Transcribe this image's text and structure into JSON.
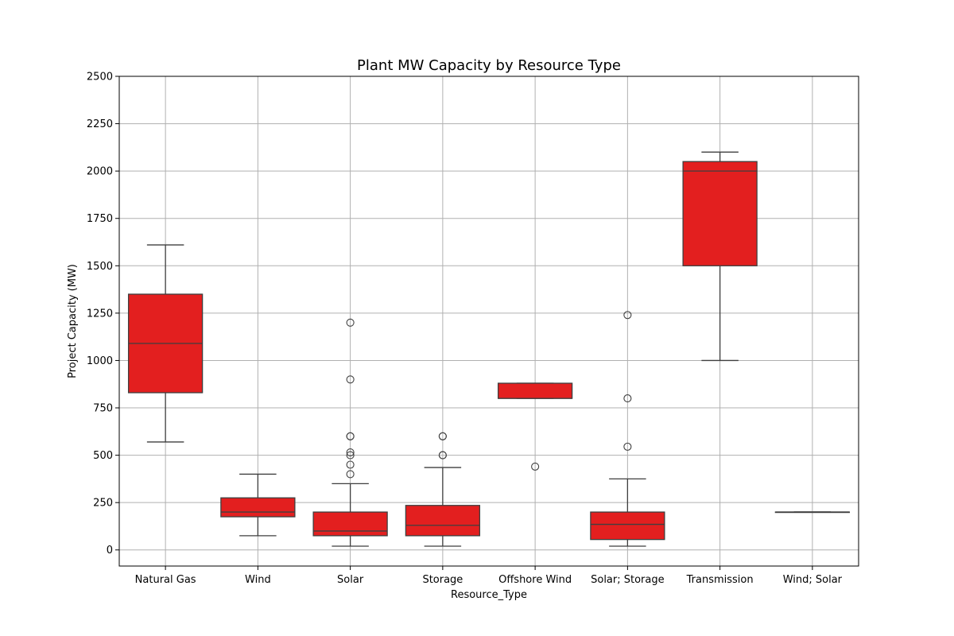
{
  "chart_data": {
    "type": "box",
    "title": "Plant MW Capacity by Resource Type",
    "xlabel": "Resource_Type",
    "ylabel": "Project Capacity (MW)",
    "ylim": [
      -85,
      2500
    ],
    "yticks": [
      0,
      250,
      500,
      750,
      1000,
      1250,
      1500,
      1750,
      2000,
      2250,
      2500
    ],
    "grid": true,
    "colors": {
      "box": "#e31f1f",
      "line": "#3f3f3f",
      "grid": "#b0b0b0"
    },
    "categories": [
      "Natural Gas",
      "Wind",
      "Solar",
      "Storage",
      "Offshore Wind",
      "Solar; Storage",
      "Transmission",
      "Wind; Solar"
    ],
    "boxes": [
      {
        "whislo": 570,
        "q1": 830,
        "med": 1090,
        "q3": 1350,
        "whishi": 1610,
        "fliers": []
      },
      {
        "whislo": 75,
        "q1": 175,
        "med": 200,
        "q3": 275,
        "whishi": 400,
        "fliers": []
      },
      {
        "whislo": 20,
        "q1": 75,
        "med": 100,
        "q3": 200,
        "whishi": 350,
        "fliers": [
          400,
          450,
          500,
          515,
          600,
          600,
          900,
          1200
        ]
      },
      {
        "whislo": 20,
        "q1": 75,
        "med": 130,
        "q3": 235,
        "whishi": 435,
        "fliers": [
          500,
          500,
          600,
          600
        ]
      },
      {
        "whislo": 800,
        "q1": 800,
        "med": 800,
        "q3": 880,
        "whishi": 880,
        "fliers": [
          440
        ]
      },
      {
        "whislo": 20,
        "q1": 55,
        "med": 135,
        "q3": 200,
        "whishi": 375,
        "fliers": [
          545,
          800,
          1240
        ]
      },
      {
        "whislo": 1000,
        "q1": 1500,
        "med": 2000,
        "q3": 2050,
        "whishi": 2100,
        "fliers": []
      },
      {
        "whislo": 200,
        "q1": 200,
        "med": 200,
        "q3": 200,
        "whishi": 200,
        "fliers": []
      }
    ]
  }
}
